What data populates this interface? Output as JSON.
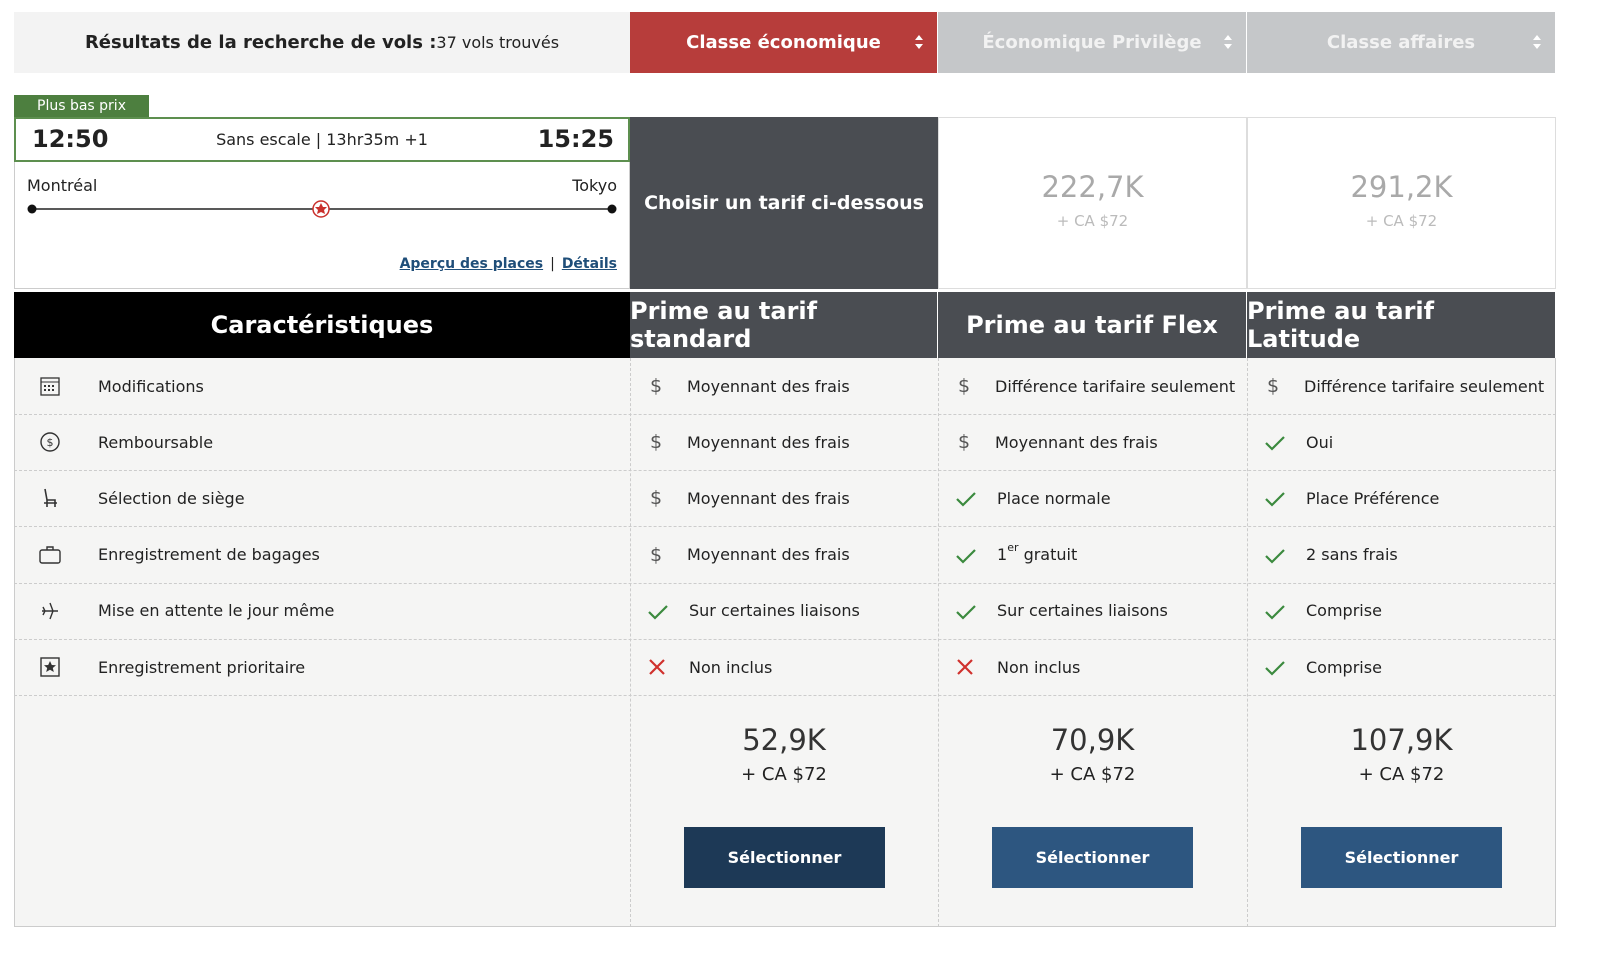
{
  "header": {
    "title": "Résultats de la recherche de vols :",
    "count": "37 vols trouvés",
    "tabs": [
      "Classe économique",
      "Économique Privilège",
      "Classe affaires"
    ]
  },
  "flight": {
    "badge": "Plus bas prix",
    "depart_time": "12:50",
    "info": "Sans escale | 13hr35m +1",
    "arrive_time": "15:25",
    "origin": "Montréal",
    "destination": "Tokyo",
    "links": [
      "Aperçu des places",
      "Détails"
    ],
    "separator": "|"
  },
  "fare_summary": {
    "prompt": "Choisir un tarif ci-dessous",
    "cabins": [
      {
        "price": "222,7K",
        "taxes": "+ CA $72"
      },
      {
        "price": "291,2K",
        "taxes": "+ CA $72"
      }
    ]
  },
  "table": {
    "header": "Caractéristiques",
    "columns": [
      "Prime au tarif standard",
      "Prime au tarif Flex",
      "Prime au tarif Latitude"
    ],
    "rows": [
      {
        "feature": "Modifications",
        "cells": [
          {
            "icon": "$",
            "text": "Moyennant des frais"
          },
          {
            "icon": "$",
            "text": "Différence tarifaire seulement"
          },
          {
            "icon": "$",
            "text": "Différence tarifaire seulement"
          }
        ]
      },
      {
        "feature": "Remboursable",
        "cells": [
          {
            "icon": "$",
            "text": "Moyennant des frais"
          },
          {
            "icon": "$",
            "text": "Moyennant des frais"
          },
          {
            "icon": "✓",
            "text": "Oui"
          }
        ]
      },
      {
        "feature": "Sélection de siège",
        "cells": [
          {
            "icon": "$",
            "text": "Moyennant des frais"
          },
          {
            "icon": "✓",
            "text": "Place normale"
          },
          {
            "icon": "✓",
            "text": "Place Préférence"
          }
        ]
      },
      {
        "feature": "Enregistrement de bagages",
        "cells": [
          {
            "icon": "$",
            "text": "Moyennant des frais"
          },
          {
            "icon": "✓",
            "text": "1",
            "sup": "er",
            "rest": " gratuit"
          },
          {
            "icon": "✓",
            "text": "2 sans frais"
          }
        ]
      },
      {
        "feature": "Mise en attente le jour même",
        "cells": [
          {
            "icon": "✓",
            "text": "Sur certaines liaisons"
          },
          {
            "icon": "✓",
            "text": "Sur certaines liaisons"
          },
          {
            "icon": "✓",
            "text": "Comprise"
          }
        ]
      },
      {
        "feature": "Enregistrement prioritaire",
        "cells": [
          {
            "icon": "✗",
            "text": "Non inclus"
          },
          {
            "icon": "✗",
            "text": "Non inclus"
          },
          {
            "icon": "✓",
            "text": "Comprise"
          }
        ]
      }
    ],
    "prices": [
      {
        "price": "52,9K",
        "taxes": "+ CA $72",
        "button": "Sélectionner"
      },
      {
        "price": "70,9K",
        "taxes": "+ CA $72",
        "button": "Sélectionner"
      },
      {
        "price": "107,9K",
        "taxes": "+ CA $72",
        "button": "Sélectionner"
      }
    ]
  }
}
